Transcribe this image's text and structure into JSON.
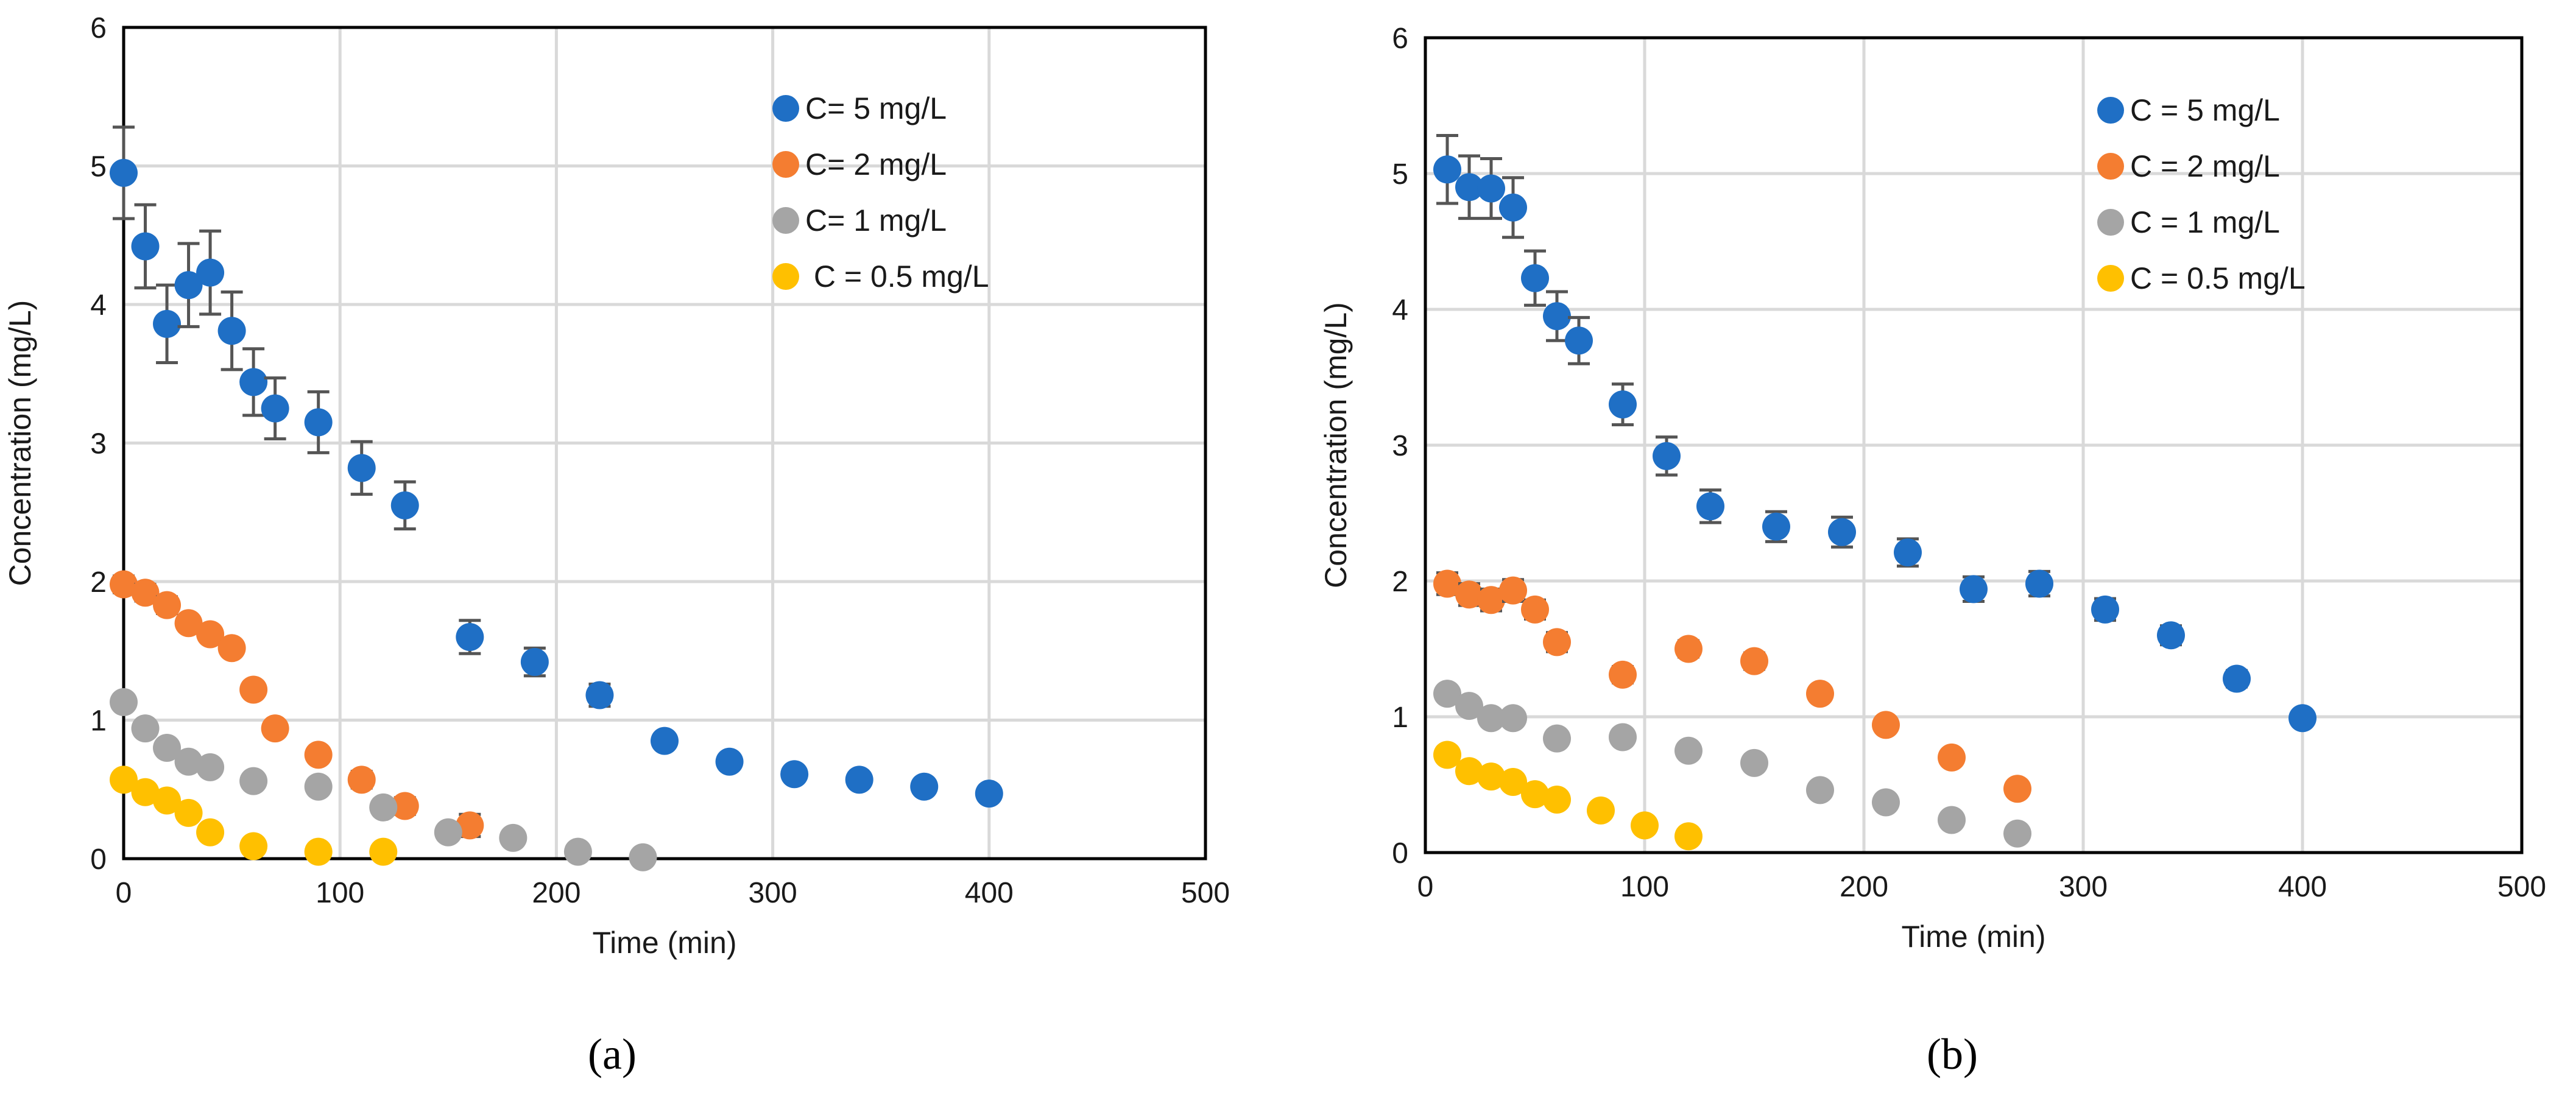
{
  "chart_data": [
    {
      "type": "scatter",
      "panel_label": "(a)",
      "xlabel": "Time (min)",
      "ylabel": "Concentration  (mg/L)",
      "xlim": [
        0,
        500
      ],
      "ylim": [
        0,
        6
      ],
      "xticks": [
        0,
        100,
        200,
        300,
        400,
        500
      ],
      "yticks": [
        0,
        1,
        2,
        3,
        4,
        5,
        6
      ],
      "grid": true,
      "legend_position": "top-right",
      "series": [
        {
          "name": "C= 5 mg/L",
          "color": "#1f6fc5",
          "x": [
            0,
            10,
            20,
            30,
            40,
            50,
            60,
            70,
            90,
            110,
            130,
            160,
            190,
            220,
            250,
            280,
            310,
            340,
            370,
            400
          ],
          "y": [
            4.95,
            4.42,
            3.86,
            4.14,
            4.23,
            3.81,
            3.44,
            3.25,
            3.15,
            2.82,
            2.55,
            1.6,
            1.42,
            1.18,
            0.85,
            0.7,
            0.61,
            0.57,
            0.52,
            0.47
          ],
          "err": [
            0.33,
            0.3,
            0.28,
            0.3,
            0.3,
            0.28,
            0.24,
            0.22,
            0.22,
            0.19,
            0.17,
            0.12,
            0.1,
            0.08,
            0.05,
            0.04,
            0.04,
            0.04,
            0.03,
            0.03
          ]
        },
        {
          "name": "C= 2 mg/L",
          "color": "#f47d31",
          "x": [
            0,
            10,
            20,
            30,
            40,
            50,
            60,
            70,
            90,
            110,
            130,
            160
          ],
          "y": [
            1.98,
            1.92,
            1.83,
            1.7,
            1.62,
            1.52,
            1.22,
            0.94,
            0.75,
            0.57,
            0.38,
            0.24
          ],
          "err": [
            0.06,
            0.06,
            0.06,
            0.05,
            0.05,
            0.05,
            0.04,
            0.03,
            0.04,
            0.06,
            0.06,
            0.08
          ]
        },
        {
          "name": "C= 1 mg/L",
          "color": "#a5a5a5",
          "x": [
            0,
            10,
            20,
            30,
            40,
            60,
            90,
            120,
            150,
            180,
            210,
            240
          ],
          "y": [
            1.13,
            0.94,
            0.8,
            0.7,
            0.66,
            0.56,
            0.52,
            0.37,
            0.19,
            0.15,
            0.05,
            0.01
          ],
          "err": [
            0,
            0,
            0,
            0,
            0,
            0,
            0,
            0,
            0,
            0,
            0,
            0
          ]
        },
        {
          "name": " C = 0.5 mg/L",
          "color": "#ffc000",
          "x": [
            0,
            10,
            20,
            30,
            40,
            60,
            90,
            120
          ],
          "y": [
            0.57,
            0.48,
            0.42,
            0.33,
            0.19,
            0.09,
            0.05,
            0.05
          ],
          "err": [
            0,
            0,
            0,
            0,
            0,
            0,
            0,
            0
          ]
        }
      ]
    },
    {
      "type": "scatter",
      "panel_label": "(b)",
      "xlabel": "Time (min)",
      "ylabel": "Concentration (mg/L)",
      "xlim": [
        0,
        500
      ],
      "ylim": [
        0,
        6
      ],
      "xticks": [
        0,
        100,
        200,
        300,
        400,
        500
      ],
      "yticks": [
        0,
        1,
        2,
        3,
        4,
        5,
        6
      ],
      "grid": true,
      "legend_position": "top-right",
      "series": [
        {
          "name": "C = 5 mg/L",
          "color": "#1f6fc5",
          "x": [
            10,
            20,
            30,
            40,
            50,
            60,
            70,
            90,
            110,
            130,
            160,
            190,
            220,
            250,
            280,
            310,
            340,
            370,
            400
          ],
          "y": [
            5.03,
            4.9,
            4.89,
            4.75,
            4.23,
            3.95,
            3.77,
            3.3,
            2.92,
            2.55,
            2.4,
            2.36,
            2.21,
            1.94,
            1.98,
            1.79,
            1.6,
            1.28,
            0.99
          ],
          "err": [
            0.25,
            0.23,
            0.22,
            0.22,
            0.2,
            0.18,
            0.17,
            0.15,
            0.14,
            0.12,
            0.11,
            0.11,
            0.1,
            0.09,
            0.09,
            0.08,
            0.07,
            0.06,
            0.04
          ]
        },
        {
          "name": "C = 2 mg/L",
          "color": "#f47d31",
          "x": [
            10,
            20,
            30,
            40,
            50,
            60,
            90,
            120,
            150,
            180,
            210,
            240,
            270
          ],
          "y": [
            1.98,
            1.9,
            1.86,
            1.93,
            1.79,
            1.55,
            1.31,
            1.5,
            1.41,
            1.17,
            0.94,
            0.7,
            0.47
          ],
          "err": [
            0.08,
            0.08,
            0.08,
            0.08,
            0.07,
            0.07,
            0.06,
            0.06,
            0.06,
            0,
            0,
            0,
            0
          ]
        },
        {
          "name": "C = 1 mg/L",
          "color": "#a5a5a5",
          "x": [
            10,
            20,
            30,
            40,
            60,
            90,
            120,
            150,
            180,
            210,
            240,
            270
          ],
          "y": [
            1.17,
            1.08,
            0.99,
            0.99,
            0.84,
            0.85,
            0.75,
            0.66,
            0.46,
            0.37,
            0.24,
            0.14
          ],
          "err": [
            0,
            0,
            0,
            0,
            0,
            0,
            0,
            0,
            0,
            0,
            0,
            0
          ]
        },
        {
          "name": "C = 0.5 mg/L",
          "color": "#ffc000",
          "x": [
            10,
            20,
            30,
            40,
            50,
            60,
            80,
            100,
            120
          ],
          "y": [
            0.72,
            0.6,
            0.56,
            0.52,
            0.43,
            0.39,
            0.31,
            0.2,
            0.12
          ],
          "err": [
            0,
            0,
            0,
            0,
            0,
            0,
            0,
            0,
            0
          ]
        }
      ]
    }
  ]
}
